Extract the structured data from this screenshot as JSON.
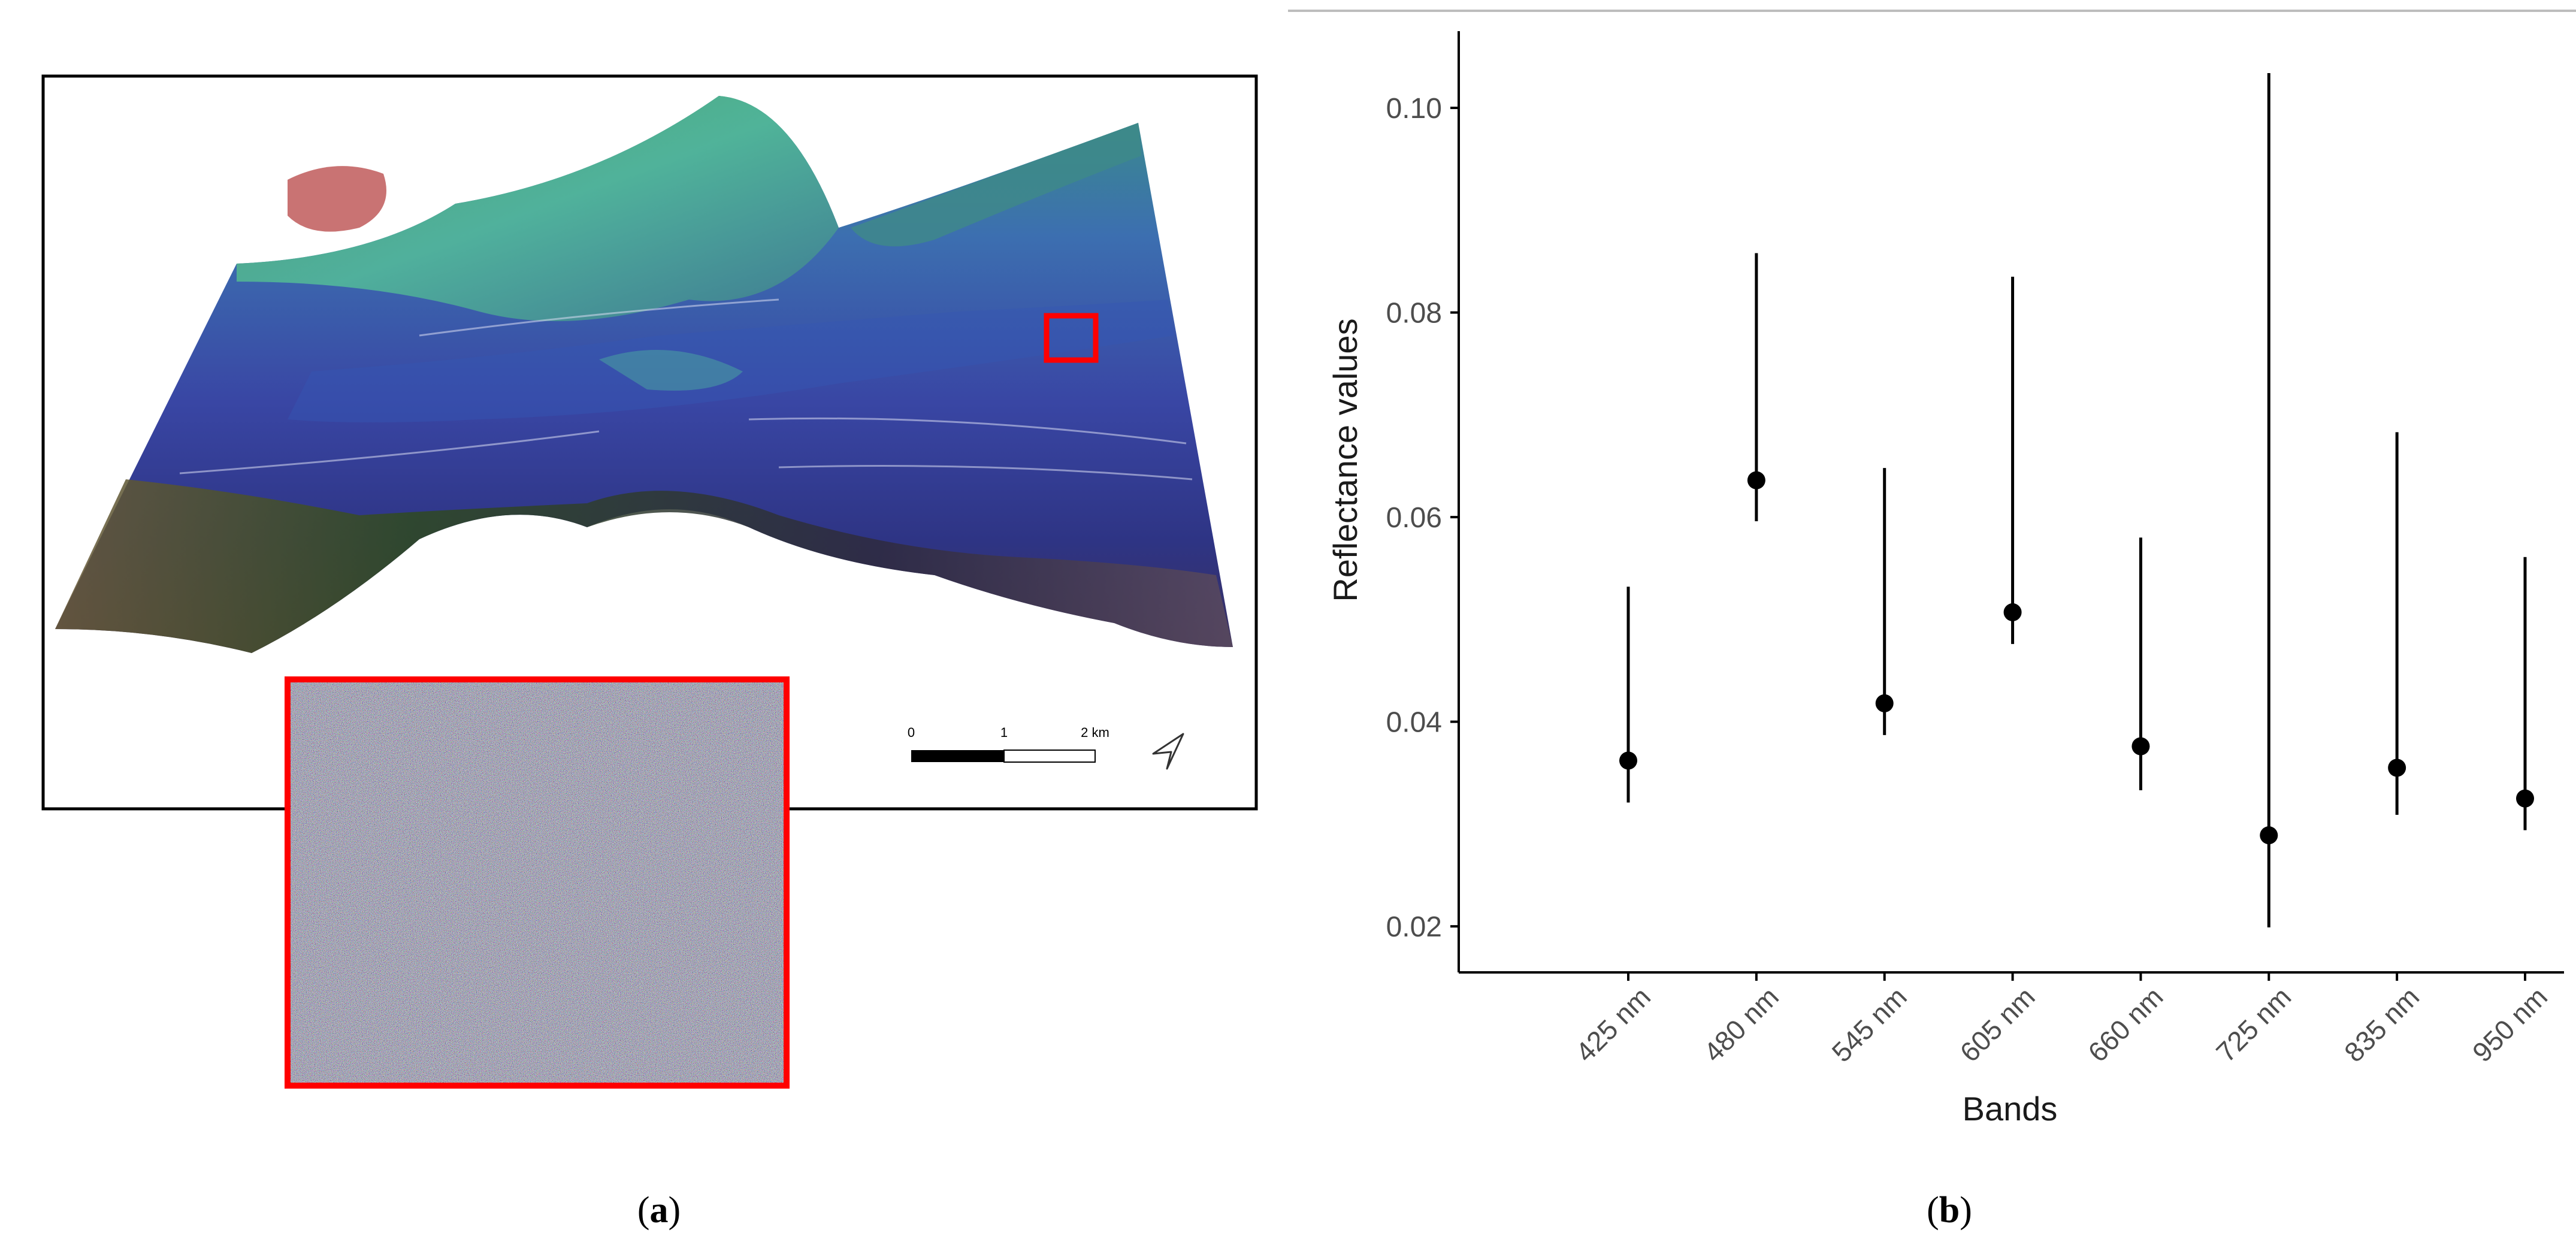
{
  "panel_a": {
    "label_open": "(",
    "label_letter": "a",
    "label_close": ")",
    "scale_bar": {
      "tick_0": "0",
      "tick_1": "1",
      "tick_2": "2 km"
    },
    "colors": {
      "frame": "#000000",
      "highlight": "#ff0000",
      "water_deep": "#2a2f8a",
      "water_mid": "#3a52b0",
      "algae_green": "#3f9a6a",
      "shore_dark": "#2f3f1e"
    },
    "icons": [
      "north-arrow-icon"
    ]
  },
  "panel_b": {
    "label_open": "(",
    "label_letter": "b",
    "label_close": ")"
  },
  "chart_data": {
    "type": "scatter",
    "xlabel": "Bands",
    "ylabel": "Reflectance values",
    "categories": [
      "425 nm",
      "480 nm",
      "545 nm",
      "605 nm",
      "660 nm",
      "725 nm",
      "835 nm",
      "950 nm"
    ],
    "series": [
      {
        "values": [
          0.0362,
          0.0636,
          0.0418,
          0.0507,
          0.0376,
          0.0289,
          0.0355,
          0.0325
        ],
        "lower": [
          0.0321,
          0.0596,
          0.0387,
          0.0476,
          0.0333,
          0.0199,
          0.0309,
          0.0294
        ],
        "upper": [
          0.0532,
          0.0858,
          0.0648,
          0.0835,
          0.058,
          0.1034,
          0.0683,
          0.0561
        ]
      }
    ],
    "ylim": [
      0.0155,
      0.1075
    ],
    "yticks": [
      0.02,
      0.04,
      0.06,
      0.08,
      0.1
    ],
    "ytick_labels": [
      "0.02",
      "0.04",
      "0.06",
      "0.08",
      "0.10"
    ],
    "grid": false,
    "error_bars": true
  }
}
